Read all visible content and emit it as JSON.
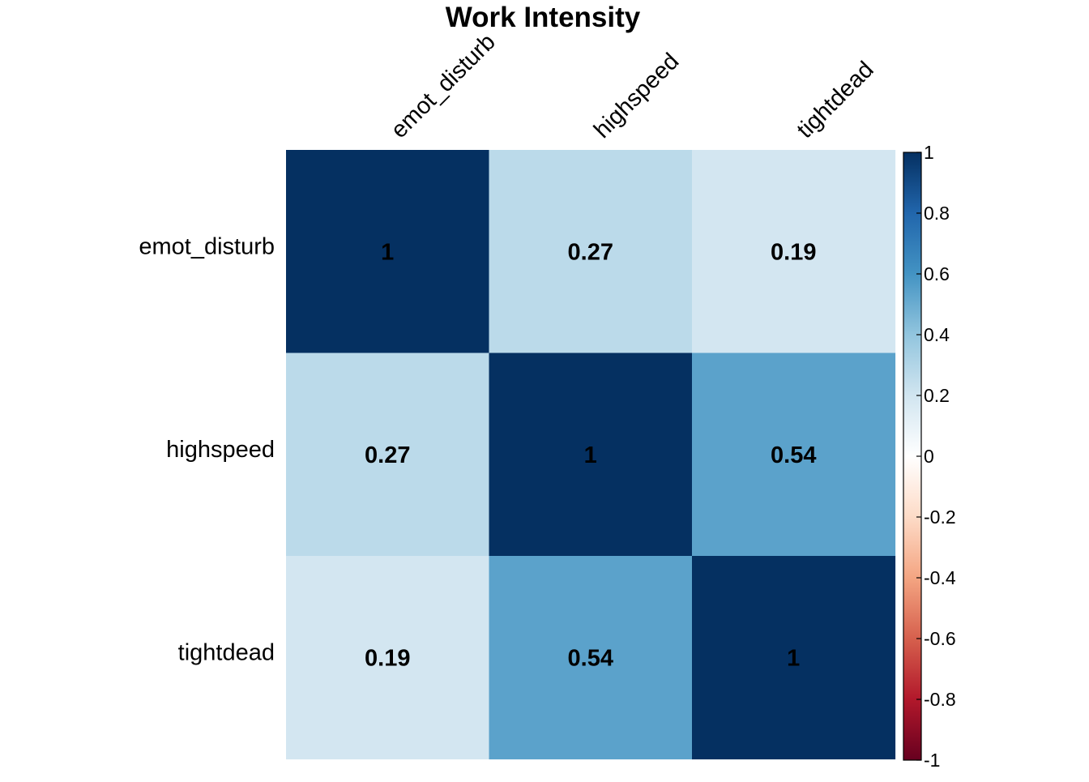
{
  "chart_data": {
    "type": "heatmap",
    "title": "Work Intensity",
    "variables": [
      "emot_disturb",
      "highspeed",
      "tightdead"
    ],
    "matrix": [
      [
        1,
        0.27,
        0.19
      ],
      [
        0.27,
        1,
        0.54
      ],
      [
        0.19,
        0.54,
        1
      ]
    ],
    "cell_labels": [
      [
        "1",
        "0.27",
        "0.19"
      ],
      [
        "0.27",
        "1",
        "0.54"
      ],
      [
        "0.19",
        "0.54",
        "1"
      ]
    ],
    "colorbar": {
      "range": [
        -1,
        1
      ],
      "ticks": [
        "1",
        "0.8",
        "0.6",
        "0.4",
        "0.2",
        "0",
        "-0.2",
        "-0.4",
        "-0.6",
        "-0.8",
        "-1"
      ],
      "palette": [
        "#67001F",
        "#B2182B",
        "#D6604D",
        "#F4A582",
        "#FDDBC7",
        "#FFFFFF",
        "#D1E5F0",
        "#92C5DE",
        "#4393C3",
        "#2166AC",
        "#053061"
      ]
    },
    "legend_placement": "right",
    "grid": false
  }
}
